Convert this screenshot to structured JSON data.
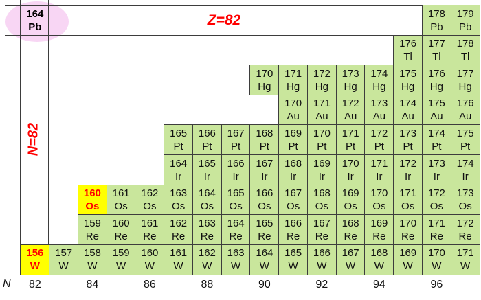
{
  "chart_data": {
    "type": "heatmap",
    "subtype": "chart-of-nuclides-segment",
    "proton_line_label": "Z=82",
    "neutron_line_label": "N=82",
    "axis": {
      "label": "N",
      "n_min": 82,
      "n_max": 97,
      "ticks": [
        "82",
        "84",
        "86",
        "88",
        "90",
        "92",
        "94",
        "96"
      ],
      "tick_values": [
        82,
        84,
        86,
        88,
        90,
        92,
        94,
        96
      ]
    },
    "rows": [
      {
        "symbol": "Pb",
        "z": 82,
        "segments": [
          {
            "n_start": 82,
            "n_end": 82
          },
          {
            "n_start": 96,
            "n_end": 97
          }
        ]
      },
      {
        "symbol": "Tl",
        "z": 81,
        "segments": [
          {
            "n_start": 95,
            "n_end": 97
          }
        ]
      },
      {
        "symbol": "Hg",
        "z": 80,
        "segments": [
          {
            "n_start": 90,
            "n_end": 97
          }
        ]
      },
      {
        "symbol": "Au",
        "z": 79,
        "segments": [
          {
            "n_start": 91,
            "n_end": 97
          }
        ]
      },
      {
        "symbol": "Pt",
        "z": 78,
        "segments": [
          {
            "n_start": 87,
            "n_end": 97
          }
        ]
      },
      {
        "symbol": "Ir",
        "z": 77,
        "segments": [
          {
            "n_start": 87,
            "n_end": 97
          }
        ]
      },
      {
        "symbol": "Os",
        "z": 76,
        "segments": [
          {
            "n_start": 84,
            "n_end": 97
          }
        ]
      },
      {
        "symbol": "Re",
        "z": 75,
        "segments": [
          {
            "n_start": 84,
            "n_end": 97
          }
        ]
      },
      {
        "symbol": "W",
        "z": 74,
        "segments": [
          {
            "n_start": 82,
            "n_end": 97
          }
        ]
      }
    ],
    "highlighted_yellow": [
      "160Os",
      "156W"
    ],
    "highlighted_ellipse": "164Pb",
    "colors": {
      "cell_green": "#c9e69c",
      "highlight_yellow": "#ffff00",
      "highlight_red_text": "#ff0000",
      "label_red": "#ff0000",
      "ellipse_pink": "#f8d6f4",
      "grid_line": "#3d3d3d"
    }
  }
}
